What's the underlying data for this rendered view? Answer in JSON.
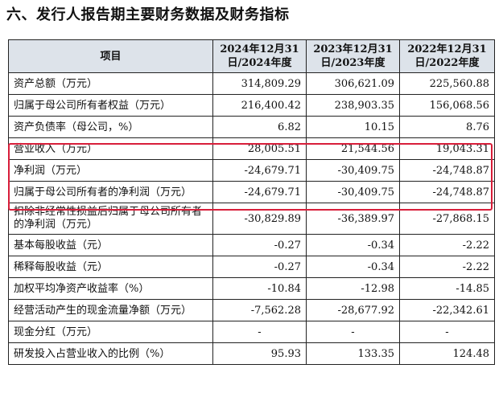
{
  "title": "六、发行人报告期主要财务数据及财务指标",
  "table": {
    "headers": [
      {
        "label": "项目"
      },
      {
        "label": "2024年12月31日/2024年度"
      },
      {
        "label": "2023年12月31日/2023年度"
      },
      {
        "label": "2022年12月31日/2022年度"
      }
    ],
    "rows": [
      {
        "label": "资产总额（万元）",
        "v2024": "314,809.29",
        "v2023": "306,621.09",
        "v2022": "225,560.88"
      },
      {
        "label": "归属于母公司所有者权益（万元）",
        "v2024": "216,400.42",
        "v2023": "238,903.35",
        "v2022": "156,068.56"
      },
      {
        "label": "资产负债率（母公司，%）",
        "v2024": "6.82",
        "v2023": "10.15",
        "v2022": "8.76"
      },
      {
        "label": "营业收入（万元）",
        "v2024": "28,005.51",
        "v2023": "21,544.56",
        "v2022": "19,043.31"
      },
      {
        "label": "净利润（万元）",
        "v2024": "-24,679.71",
        "v2023": "-30,409.75",
        "v2022": "-24,748.87"
      },
      {
        "label": "归属于母公司所有者的净利润（万元）",
        "v2024": "-24,679.71",
        "v2023": "-30,409.75",
        "v2022": "-24,748.87"
      },
      {
        "label": "扣除非经常性损益后归属于母公司所有者的净利润（万元）",
        "v2024": "-30,829.89",
        "v2023": "-36,389.97",
        "v2022": "-27,868.15"
      },
      {
        "label": "基本每股收益（元）",
        "v2024": "-0.27",
        "v2023": "-0.34",
        "v2022": "-2.22"
      },
      {
        "label": "稀释每股收益（元）",
        "v2024": "-0.27",
        "v2023": "-0.34",
        "v2022": "-2.22"
      },
      {
        "label": "加权平均净资产收益率（%）",
        "v2024": "-10.84",
        "v2023": "-12.98",
        "v2022": "-14.85"
      },
      {
        "label": "经营活动产生的现金流量净额（万元）",
        "v2024": "-7,562.28",
        "v2023": "-28,677.92",
        "v2022": "-22,342.61"
      },
      {
        "label": "现金分红（万元）",
        "v2024": "-",
        "v2023": "-",
        "v2022": "-"
      },
      {
        "label": "研发投入占营业收入的比例（%）",
        "v2024": "95.93",
        "v2023": "133.35",
        "v2022": "124.48"
      }
    ]
  },
  "highlight_color": "#d81e3a",
  "header_bg": "#dde3ea"
}
